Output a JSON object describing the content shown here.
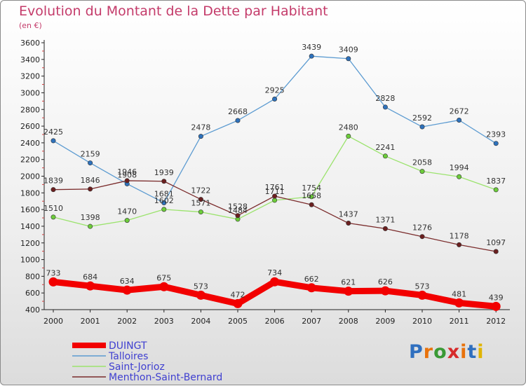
{
  "title": "Evolution du Montant de la Dette par Habitant",
  "subtitle": "(en €)",
  "logo": {
    "text": "Proxiti",
    "letter_colors": [
      "#2f6fbf",
      "#e8720c",
      "#3a9a35",
      "#d62a2a",
      "#e8720c",
      "#2f6fbf",
      "#e0b400"
    ]
  },
  "chart_data": {
    "type": "line",
    "title": "Evolution du Montant de la Dette par Habitant",
    "subtitle": "(en €)",
    "xlabel": "",
    "ylabel": "",
    "x": [
      "2000",
      "2001",
      "2002",
      "2003",
      "2004",
      "2005",
      "2006",
      "2007",
      "2008",
      "2009",
      "2010",
      "2011",
      "2012"
    ],
    "ylim": [
      400,
      3600
    ],
    "yticks": [
      400,
      600,
      800,
      1000,
      1200,
      1400,
      1600,
      1800,
      2000,
      2200,
      2400,
      2600,
      2800,
      3000,
      3200,
      3400,
      3600
    ],
    "grid": false,
    "legend_position": "bottom-left",
    "series": [
      {
        "name": "DUINGT",
        "color": "#f20000",
        "marker_color": "#f20000",
        "values": [
          733,
          684,
          634,
          675,
          573,
          472,
          734,
          662,
          621,
          626,
          573,
          481,
          439
        ],
        "labels": [
          "733",
          "684",
          "634",
          "675",
          "573",
          "472",
          "734",
          "662",
          "621",
          "626",
          "573",
          "481",
          "439"
        ]
      },
      {
        "name": "Talloires",
        "color": "#5c9bd1",
        "marker_color": "#2e72bd",
        "values": [
          2425,
          2159,
          1908,
          1681,
          2478,
          2668,
          2925,
          3439,
          3409,
          2828,
          2592,
          2672,
          2393
        ],
        "labels": [
          "2425",
          "2159",
          "1908",
          "1681",
          "2478",
          "2668",
          "2925",
          "3439",
          "3409",
          "2828",
          "2592",
          "2672",
          "2393"
        ]
      },
      {
        "name": "Saint-Jorioz",
        "color": "#9be36d",
        "marker_color": "#6ccc3a",
        "values": [
          1510,
          1398,
          1470,
          1602,
          1571,
          1484,
          1711,
          1754,
          2480,
          2241,
          2058,
          1994,
          1837
        ],
        "labels": [
          "1510",
          "1398",
          "1470",
          "1602",
          "1571",
          "1484",
          "1711",
          "1754",
          "2480",
          "2241",
          "2058",
          "1994",
          "1837"
        ]
      },
      {
        "name": "Menthon-Saint-Bernard",
        "color": "#7a2b2b",
        "marker_color": "#6b1f1f",
        "values": [
          1839,
          1846,
          1946,
          1939,
          1722,
          1528,
          1761,
          1658,
          1437,
          1371,
          1276,
          1178,
          1097
        ],
        "labels": [
          "1839",
          "1846",
          "1946",
          "1939",
          "1722",
          "1528",
          "1761",
          "1658",
          "1437",
          "1371",
          "1276",
          "1178",
          "1097"
        ]
      }
    ]
  }
}
